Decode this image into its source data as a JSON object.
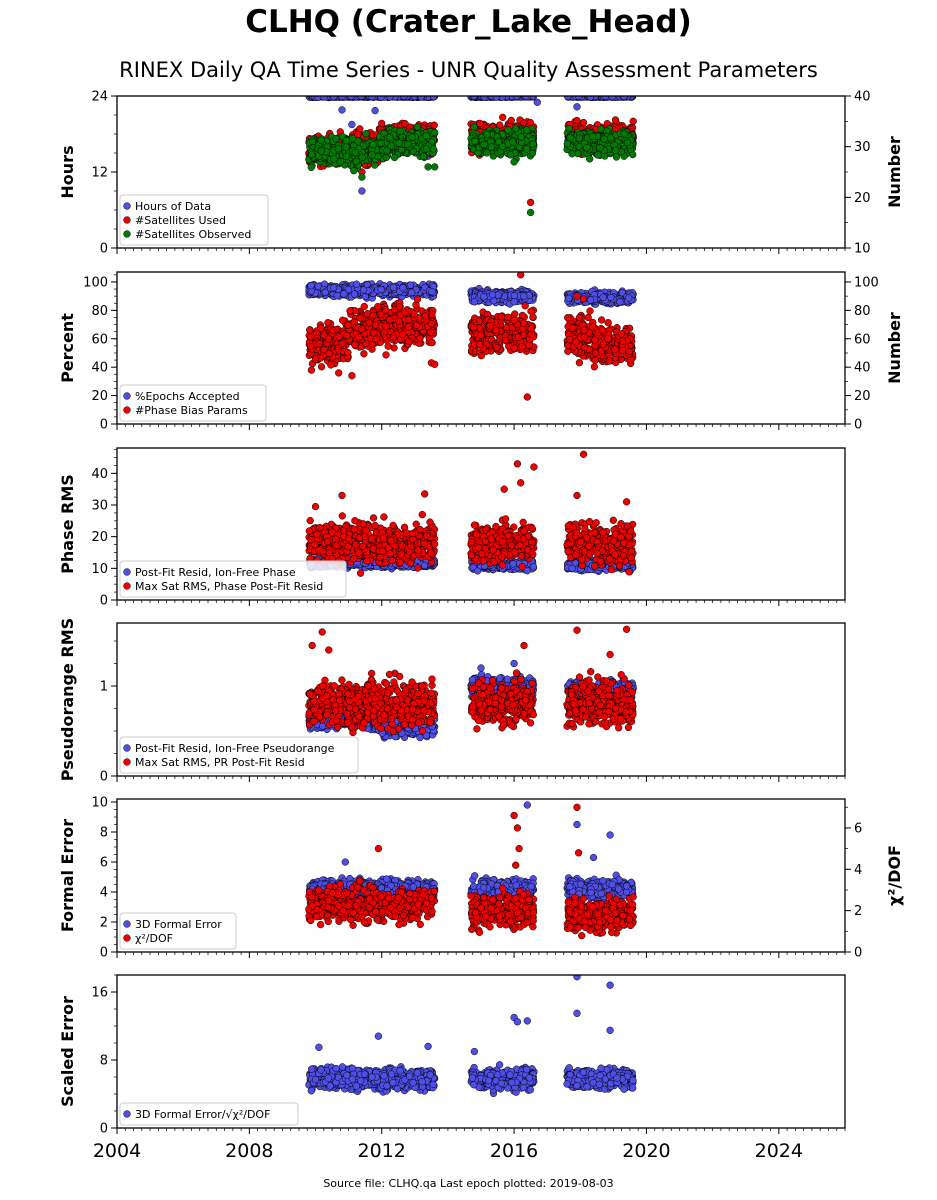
{
  "title": "CLHQ (Crater_Lake_Head)",
  "subtitle": "RINEX Daily QA Time Series - UNR Quality Assessment Parameters",
  "footer": "Source file: CLHQ.qa Last epoch plotted: 2019-08-03",
  "colors": {
    "blue": "#4f4fe8",
    "red": "#ee0000",
    "green": "#007a00",
    "edge": "#000000"
  },
  "chart_data": {
    "type": "scatter",
    "x_range": [
      2004,
      2026
    ],
    "x_ticks": [
      2004,
      2008,
      2012,
      2016,
      2020,
      2024
    ],
    "data_spans": [
      [
        2009.8,
        2013.6
      ],
      [
        2014.7,
        2016.6
      ],
      [
        2017.6,
        2019.6
      ]
    ],
    "grid": false,
    "panels": [
      {
        "id": "hours",
        "ylabel": "Hours",
        "ylim": [
          0,
          24
        ],
        "yticks": [
          0,
          12,
          24
        ],
        "ylabel_right": "Number",
        "ylim_right": [
          10,
          40
        ],
        "yticks_right": [
          10,
          20,
          30,
          40
        ],
        "legend_position": "lower-left",
        "series": [
          {
            "name": "Hours of Data",
            "color": "blue",
            "axis": "left",
            "typical": 23.9,
            "spread": 0.05,
            "outliers": [
              [
                2010.8,
                21.8
              ],
              [
                2011.1,
                19.5
              ],
              [
                2011.4,
                9.0
              ],
              [
                2011.8,
                21.7
              ],
              [
                2016.7,
                23.0
              ],
              [
                2017.9,
                22.3
              ],
              [
                2013.4,
                14.5
              ]
            ]
          },
          {
            "name": "#Satellites Used",
            "color": "red",
            "axis": "right",
            "typical": 31.0,
            "spread": 1.4,
            "segments": [
              [
                2009.8,
                2011.9,
                29.5
              ],
              [
                2011.9,
                2013.6,
                32.0
              ],
              [
                2014.7,
                2016.6,
                32.0
              ],
              [
                2017.6,
                2019.6,
                32.0
              ]
            ],
            "outliers": [
              [
                2011.4,
                25.0
              ],
              [
                2016.5,
                19.0
              ],
              [
                2013.5,
                28.5
              ]
            ]
          },
          {
            "name": "#Satellites Observed",
            "color": "green",
            "axis": "right",
            "typical": 30.5,
            "spread": 1.3,
            "segments": [
              [
                2009.8,
                2011.9,
                29.0
              ],
              [
                2011.9,
                2013.6,
                31.0
              ],
              [
                2014.7,
                2016.6,
                31.0
              ],
              [
                2017.6,
                2019.6,
                30.8
              ]
            ],
            "outliers": [
              [
                2011.4,
                24.0
              ],
              [
                2016.5,
                17.0
              ],
              [
                2016.0,
                27.0
              ],
              [
                2013.4,
                26.0
              ],
              [
                2013.6,
                26.0
              ]
            ]
          }
        ]
      },
      {
        "id": "percent",
        "ylabel": "Percent",
        "ylim": [
          0,
          107
        ],
        "yticks": [
          0,
          20,
          40,
          60,
          80,
          100
        ],
        "ylabel_right": "Number",
        "ylim_right": [
          0,
          107
        ],
        "yticks_right": [
          0,
          20,
          40,
          60,
          80,
          100
        ],
        "legend_position": "lower-left",
        "series": [
          {
            "name": "%Epochs Accepted",
            "color": "blue",
            "axis": "left",
            "typical": 93,
            "spread": 2,
            "segments": [
              [
                2009.8,
                2013.6,
                94
              ],
              [
                2014.7,
                2016.6,
                90
              ],
              [
                2017.6,
                2019.6,
                89
              ]
            ],
            "outliers": [
              [
                2014.8,
                86
              ],
              [
                2016.0,
                86
              ]
            ]
          },
          {
            "name": "#Phase Bias Params",
            "color": "red",
            "axis": "right",
            "typical": 62,
            "spread": 7,
            "segments": [
              [
                2009.8,
                2011.0,
                57
              ],
              [
                2011.0,
                2011.9,
                66
              ],
              [
                2011.9,
                2013.6,
                70
              ],
              [
                2014.7,
                2016.6,
                64
              ],
              [
                2017.6,
                2018.3,
                62
              ],
              [
                2018.3,
                2019.6,
                56
              ]
            ],
            "outliers": [
              [
                2010.7,
                36
              ],
              [
                2011.1,
                34
              ],
              [
                2013.5,
                43
              ],
              [
                2013.6,
                42
              ],
              [
                2016.2,
                105
              ],
              [
                2016.4,
                19
              ],
              [
                2017.9,
                90
              ],
              [
                2018.1,
                88
              ]
            ]
          }
        ]
      },
      {
        "id": "phase",
        "ylabel": "Phase RMS",
        "ylim": [
          0,
          48
        ],
        "yticks": [
          0,
          10,
          20,
          30,
          40
        ],
        "legend_position": "lower-left",
        "series": [
          {
            "name": "Post-Fit Resid, Ion-Free Phase",
            "color": "blue",
            "axis": "left",
            "typical": 11.5,
            "spread": 0.7,
            "segments": [
              [
                2009.8,
                2013.6,
                11.8
              ],
              [
                2014.7,
                2016.6,
                11.0
              ],
              [
                2017.6,
                2019.6,
                11.0
              ]
            ],
            "outliers": [
              [
                2019.5,
                9.0
              ]
            ]
          },
          {
            "name": "Max Sat RMS, Phase Post-Fit Resid",
            "color": "red",
            "axis": "left",
            "typical": 18,
            "spread": 3,
            "outliers": [
              [
                2010.0,
                29.5
              ],
              [
                2010.8,
                33.0
              ],
              [
                2013.3,
                33.5
              ],
              [
                2015.7,
                35.0
              ],
              [
                2016.1,
                43.0
              ],
              [
                2016.6,
                42.0
              ],
              [
                2016.2,
                37.0
              ],
              [
                2017.9,
                33.0
              ],
              [
                2018.1,
                46.0
              ],
              [
                2019.4,
                31.0
              ]
            ]
          }
        ]
      },
      {
        "id": "pseudorange",
        "ylabel": "Pseudorange RMS",
        "ylim": [
          0,
          1.7
        ],
        "yticks": [
          0,
          1
        ],
        "legend_position": "lower-left",
        "series": [
          {
            "name": "Post-Fit Resid, Ion-Free Pseudorange",
            "color": "blue",
            "axis": "left",
            "typical": 0.6,
            "spread": 0.05,
            "segments": [
              [
                2009.8,
                2011.9,
                0.63
              ],
              [
                2011.9,
                2013.6,
                0.55
              ],
              [
                2014.7,
                2016.6,
                1.0
              ],
              [
                2017.6,
                2019.6,
                0.95
              ]
            ],
            "outliers": [
              [
                2015.0,
                1.2
              ],
              [
                2016.0,
                1.25
              ]
            ]
          },
          {
            "name": "Max Sat RMS, PR Post-Fit Resid",
            "color": "red",
            "axis": "left",
            "typical": 0.8,
            "spread": 0.12,
            "outliers": [
              [
                2009.9,
                1.45
              ],
              [
                2010.2,
                1.6
              ],
              [
                2010.4,
                1.4
              ],
              [
                2016.3,
                1.45
              ],
              [
                2017.9,
                1.62
              ],
              [
                2018.9,
                1.35
              ],
              [
                2019.4,
                1.63
              ]
            ]
          }
        ]
      },
      {
        "id": "formal",
        "ylabel": "Formal Error",
        "ylim": [
          0,
          10.2
        ],
        "yticks": [
          0,
          2,
          4,
          6,
          8,
          10
        ],
        "ylabel_right": "χ²/DOF",
        "ylim_right": [
          0,
          7.4
        ],
        "yticks_right": [
          0,
          2,
          4,
          6
        ],
        "legend_position": "lower-left",
        "series": [
          {
            "name": "3D Formal Error",
            "color": "blue",
            "axis": "left",
            "typical": 4.2,
            "spread": 0.3,
            "outliers": [
              [
                2010.9,
                6.0
              ],
              [
                2016.4,
                9.8
              ],
              [
                2017.9,
                8.5
              ],
              [
                2018.9,
                7.8
              ],
              [
                2018.4,
                6.3
              ]
            ]
          },
          {
            "name": "χ²/DOF",
            "color": "red",
            "axis": "right",
            "typical": 2.1,
            "spread": 0.4,
            "segments": [
              [
                2009.8,
                2013.6,
                2.3
              ],
              [
                2014.7,
                2016.6,
                2.0
              ],
              [
                2017.6,
                2019.6,
                1.8
              ]
            ],
            "outliers": [
              [
                2011.9,
                5.0
              ],
              [
                2016.0,
                6.6
              ],
              [
                2016.1,
                6.0
              ],
              [
                2016.15,
                5.0
              ],
              [
                2016.05,
                4.2
              ],
              [
                2017.9,
                7.0
              ],
              [
                2017.95,
                4.8
              ]
            ]
          }
        ]
      },
      {
        "id": "scaled",
        "ylabel": "Scaled Error",
        "ylim": [
          0,
          18
        ],
        "yticks": [
          0,
          8,
          16
        ],
        "legend_position": "lower-left",
        "series": [
          {
            "name": "3D Formal Error/√χ²/DOF",
            "color": "blue",
            "axis": "left",
            "typical": 5.8,
            "spread": 0.6,
            "outliers": [
              [
                2010.1,
                9.5
              ],
              [
                2011.9,
                10.8
              ],
              [
                2013.4,
                9.6
              ],
              [
                2014.8,
                9.0
              ],
              [
                2016.0,
                13.0
              ],
              [
                2016.1,
                12.5
              ],
              [
                2016.4,
                12.6
              ],
              [
                2017.9,
                17.8
              ],
              [
                2018.9,
                16.8
              ],
              [
                2017.9,
                13.5
              ],
              [
                2018.9,
                11.5
              ]
            ]
          }
        ]
      }
    ]
  }
}
